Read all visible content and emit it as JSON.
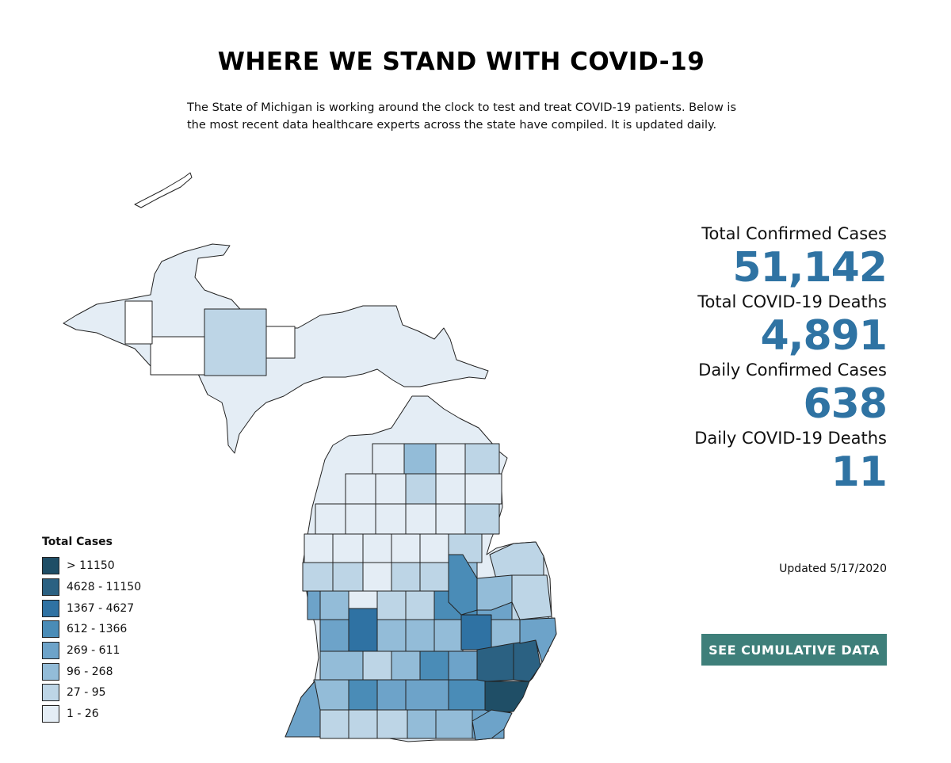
{
  "header": {
    "title": "WHERE WE STAND WITH COVID-19",
    "intro_line1": "The State of Michigan is working around the clock to test and treat COVID-19 patients. Below is",
    "intro_line2": "the most recent data healthcare experts across the state have compiled. It is updated daily."
  },
  "stats": [
    {
      "label": "Total Confirmed Cases",
      "value": "51,142"
    },
    {
      "label": "Total COVID-19 Deaths",
      "value": "4,891"
    },
    {
      "label": "Daily Confirmed Cases",
      "value": "638"
    },
    {
      "label": "Daily COVID-19 Deaths",
      "value": "11"
    }
  ],
  "updated": "Updated 5/17/2020",
  "cta_label": "SEE CUMULATIVE DATA",
  "legend": {
    "title": "Total Cases",
    "items": [
      {
        "label": "> 11150",
        "color": "#1f4e66"
      },
      {
        "label": "4628 - 11150",
        "color": "#2b6182"
      },
      {
        "label": "1367 - 4627",
        "color": "#2f72a3"
      },
      {
        "label": "612 - 1366",
        "color": "#4a8cb7"
      },
      {
        "label": "269 - 611",
        "color": "#6da3c9"
      },
      {
        "label": "96 - 268",
        "color": "#93bcd8"
      },
      {
        "label": "27 - 95",
        "color": "#bdd5e6"
      },
      {
        "label": "1 - 26",
        "color": "#e4edf5"
      }
    ],
    "no_data_color": "#ffffff",
    "border_color": "#222222"
  }
}
